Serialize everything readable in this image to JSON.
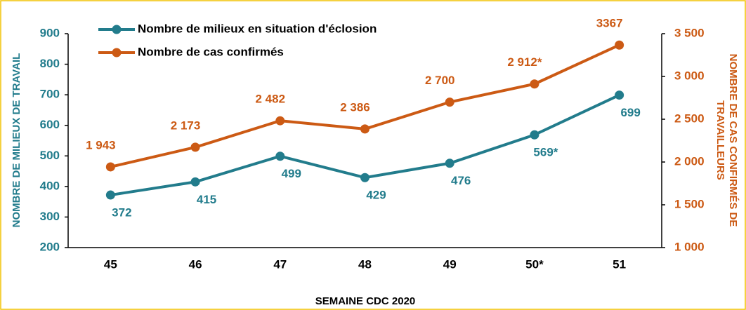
{
  "chart_data": {
    "type": "line",
    "xlabel": "SEMAINE CDC 2020",
    "ylabel": "NOMBRE DE MILIEUX DE TRAVAIL",
    "y2label": [
      "NOMBRE DE CAS CONFIRMÉS DE",
      "TRAVAILLEURS"
    ],
    "categories": [
      "45",
      "46",
      "47",
      "48",
      "49",
      "50*",
      "51"
    ],
    "series": [
      {
        "name": "Nombre de milieux en situation d'éclosion",
        "color": "#227c8c",
        "values": [
          372,
          415,
          499,
          429,
          476,
          569,
          699
        ],
        "value_labels": [
          "372",
          "415",
          "499",
          "429",
          "476",
          "569*",
          "699"
        ]
      },
      {
        "name": "Nombre de cas confirmés",
        "color": "#cc5a14",
        "axis": "y2",
        "values": [
          1943,
          2173,
          2482,
          2386,
          2700,
          2912,
          3367
        ],
        "value_labels": [
          "1 943",
          "2 173",
          "2 482",
          "2 386",
          "2 700",
          "2 912*",
          "3367"
        ]
      }
    ],
    "ylim": [
      200,
      900
    ],
    "yticks": [
      200,
      300,
      400,
      500,
      600,
      700,
      800,
      900
    ],
    "y2lim": [
      1000,
      3500
    ],
    "y2ticks": [
      {
        "value": 1000,
        "label": "1 000"
      },
      {
        "value": 1500,
        "label": "1 500"
      },
      {
        "value": 2000,
        "label": "2 000"
      },
      {
        "value": 2500,
        "label": "2 500"
      },
      {
        "value": 3000,
        "label": "3 000"
      },
      {
        "value": 3500,
        "label": "3 500"
      }
    ],
    "grid": false,
    "legend": "top-left"
  }
}
